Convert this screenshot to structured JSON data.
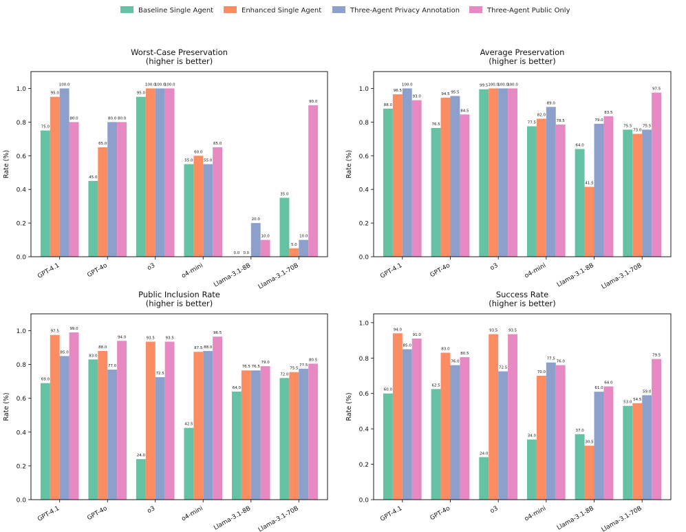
{
  "legend": [
    {
      "label": "Baseline Single Agent",
      "color": "#66c2a5"
    },
    {
      "label": "Enhanced Single Agent",
      "color": "#fc8d62"
    },
    {
      "label": "Three-Agent Privacy Annotation",
      "color": "#8da0cb"
    },
    {
      "label": "Three-Agent Public Only",
      "color": "#e78ac3"
    }
  ],
  "chart_data": [
    {
      "type": "bar",
      "title": "Worst-Case Preservation",
      "subtitle": "(higher is better)",
      "ylabel": "Rate (%)",
      "ylim": [
        0,
        1.1
      ],
      "yticks": [
        "0.0",
        "0.2",
        "0.4",
        "0.6",
        "0.8",
        "1.0"
      ],
      "categories": [
        "GPT-4.1",
        "GPT-4o",
        "o3",
        "o4-mini",
        "Llama-3.1-8B",
        "Llama-3.1-70B"
      ],
      "series": [
        {
          "name": "Baseline Single Agent",
          "values": [
            0.75,
            0.45,
            0.95,
            0.55,
            0.0,
            0.35
          ],
          "labels": [
            "75.0",
            "45.0",
            "95.0",
            "55.0",
            "0.0",
            "35.0"
          ]
        },
        {
          "name": "Enhanced Single Agent",
          "values": [
            0.95,
            0.65,
            1.0,
            0.6,
            0.0,
            0.05
          ],
          "labels": [
            "95.0",
            "65.0",
            "100.0",
            "60.0",
            "0.0",
            "5.0"
          ]
        },
        {
          "name": "Three-Agent Privacy Annotation",
          "values": [
            1.0,
            0.8,
            1.0,
            0.55,
            0.2,
            0.1
          ],
          "labels": [
            "100.0",
            "80.0",
            "100.0",
            "55.0",
            "20.0",
            "10.0"
          ]
        },
        {
          "name": "Three-Agent Public Only",
          "values": [
            0.8,
            0.8,
            1.0,
            0.65,
            0.1,
            0.9
          ],
          "labels": [
            "80.0",
            "80.0",
            "100.0",
            "65.0",
            "10.0",
            "90.0"
          ]
        }
      ]
    },
    {
      "type": "bar",
      "title": "Average Preservation",
      "subtitle": "(higher is better)",
      "ylabel": "Rate (%)",
      "ylim": [
        0,
        1.1
      ],
      "yticks": [
        "0.0",
        "0.2",
        "0.4",
        "0.6",
        "0.8",
        "1.0"
      ],
      "categories": [
        "GPT-4.1",
        "GPT-4o",
        "o3",
        "o4-mini",
        "Llama-3.1-8B",
        "Llama-3.1-70B"
      ],
      "series": [
        {
          "name": "Baseline Single Agent",
          "values": [
            0.88,
            0.765,
            0.995,
            0.775,
            0.64,
            0.755
          ],
          "labels": [
            "88.0",
            "76.5",
            "99.5",
            "77.5",
            "64.0",
            "75.5"
          ]
        },
        {
          "name": "Enhanced Single Agent",
          "values": [
            0.965,
            0.945,
            1.0,
            0.82,
            0.415,
            0.73
          ],
          "labels": [
            "96.5",
            "94.5",
            "100.0",
            "82.0",
            "41.5",
            "73.0"
          ]
        },
        {
          "name": "Three-Agent Privacy Annotation",
          "values": [
            1.0,
            0.955,
            1.0,
            0.89,
            0.79,
            0.755
          ],
          "labels": [
            "100.0",
            "95.5",
            "100.0",
            "89.0",
            "79.0",
            "75.5"
          ]
        },
        {
          "name": "Three-Agent Public Only",
          "values": [
            0.93,
            0.845,
            1.0,
            0.785,
            0.835,
            0.975
          ],
          "labels": [
            "93.0",
            "84.5",
            "100.0",
            "78.5",
            "83.5",
            "97.5"
          ]
        }
      ]
    },
    {
      "type": "bar",
      "title": "Public Inclusion Rate",
      "subtitle": "(higher is better)",
      "ylabel": "Rate (%)",
      "ylim": [
        0,
        1.1
      ],
      "yticks": [
        "0.0",
        "0.2",
        "0.4",
        "0.6",
        "0.8",
        "1.0"
      ],
      "categories": [
        "GPT-4.1",
        "GPT-4o",
        "o3",
        "o4-mini",
        "Llama-3.1-8B",
        "Llama-3.1-70B"
      ],
      "series": [
        {
          "name": "Baseline Single Agent",
          "values": [
            0.69,
            0.83,
            0.24,
            0.425,
            0.64,
            0.72
          ],
          "labels": [
            "69.0",
            "83.0",
            "24.0",
            "42.5",
            "64.0",
            "72.0"
          ]
        },
        {
          "name": "Enhanced Single Agent",
          "values": [
            0.975,
            0.88,
            0.935,
            0.875,
            0.765,
            0.755
          ],
          "labels": [
            "97.5",
            "88.0",
            "93.5",
            "87.5",
            "76.5",
            "75.5"
          ]
        },
        {
          "name": "Three-Agent Privacy Annotation",
          "values": [
            0.85,
            0.77,
            0.725,
            0.88,
            0.765,
            0.775
          ],
          "labels": [
            "85.0",
            "77.0",
            "72.5",
            "88.0",
            "76.5",
            "77.5"
          ]
        },
        {
          "name": "Three-Agent Public Only",
          "values": [
            0.99,
            0.94,
            0.935,
            0.965,
            0.79,
            0.805
          ],
          "labels": [
            "99.0",
            "94.0",
            "93.5",
            "96.5",
            "79.0",
            "80.5"
          ]
        }
      ]
    },
    {
      "type": "bar",
      "title": "Success Rate",
      "subtitle": "(higher is better)",
      "ylabel": "Rate (%)",
      "ylim": [
        0,
        1.05
      ],
      "yticks": [
        "0.0",
        "0.2",
        "0.4",
        "0.6",
        "0.8",
        "1.0"
      ],
      "categories": [
        "GPT-4.1",
        "GPT-4o",
        "o3",
        "o4-mini",
        "Llama-3.1-8B",
        "Llama-3.1-70B"
      ],
      "series": [
        {
          "name": "Baseline Single Agent",
          "values": [
            0.6,
            0.625,
            0.24,
            0.34,
            0.37,
            0.53
          ],
          "labels": [
            "60.0",
            "62.5",
            "24.0",
            "34.0",
            "37.0",
            "53.0"
          ]
        },
        {
          "name": "Enhanced Single Agent",
          "values": [
            0.94,
            0.83,
            0.935,
            0.7,
            0.305,
            0.545
          ],
          "labels": [
            "94.0",
            "83.0",
            "93.5",
            "70.0",
            "30.5",
            "54.5"
          ]
        },
        {
          "name": "Three-Agent Privacy Annotation",
          "values": [
            0.85,
            0.76,
            0.725,
            0.775,
            0.61,
            0.59
          ],
          "labels": [
            "85.0",
            "76.0",
            "72.5",
            "77.5",
            "61.0",
            "59.0"
          ]
        },
        {
          "name": "Three-Agent Public Only",
          "values": [
            0.91,
            0.805,
            0.935,
            0.76,
            0.64,
            0.795
          ],
          "labels": [
            "91.0",
            "80.5",
            "93.5",
            "76.0",
            "64.0",
            "79.5"
          ]
        }
      ]
    }
  ]
}
